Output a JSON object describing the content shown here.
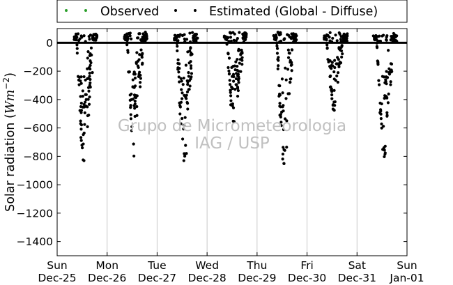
{
  "chart_data": {
    "type": "scatter",
    "ylabel": "Solar radiation (Wm^-2)",
    "ylabel_parts": {
      "prefix": "Solar radiation (",
      "unit": "Wm",
      "exponent": "−2",
      "suffix": ")"
    },
    "ylim": [
      -1500,
      100
    ],
    "yticks": [
      0,
      -200,
      -400,
      -600,
      -800,
      -1000,
      -1200,
      -1400
    ],
    "ytick_labels": [
      "0",
      "−200",
      "−400",
      "−600",
      "−800",
      "−1000",
      "−1200",
      "−1400"
    ],
    "xlim_days": [
      0,
      7
    ],
    "xticks": [
      {
        "day": "Sun",
        "date": "Dec-25"
      },
      {
        "day": "Mon",
        "date": "Dec-26"
      },
      {
        "day": "Tue",
        "date": "Dec-27"
      },
      {
        "day": "Wed",
        "date": "Dec-28"
      },
      {
        "day": "Thu",
        "date": "Dec-29"
      },
      {
        "day": "Fri",
        "date": "Dec-30"
      },
      {
        "day": "Sat",
        "date": "Dec-31"
      },
      {
        "day": "Sun",
        "date": "Jan-01"
      }
    ],
    "grid": "vertical lines at day boundaries",
    "legend_position": "top, outside plot",
    "watermark": [
      "Grupo de Micrometeorologia",
      "IAG / USP"
    ],
    "colors": {
      "observed": "#2ca02c",
      "estimated": "#000000",
      "grid": "#c8c8c8",
      "watermark": "#c0c0c0"
    },
    "series": [
      {
        "name": "Observed",
        "color": "#2ca02c",
        "points": []
      },
      {
        "name": "Estimated (Global - Diffuse)",
        "color": "#000000",
        "days": [
          {
            "day_index": 0,
            "min_value": -950,
            "morning_low_hours": 14.5,
            "afternoon_recover_hours": 18,
            "scatter": true
          },
          {
            "day_index": 1,
            "min_value": -810,
            "morning_low_hours": 14.5,
            "afternoon_recover_hours": 18,
            "scatter": true
          },
          {
            "day_index": 2,
            "min_value": -840,
            "morning_low_hours": 14,
            "afternoon_recover_hours": 18,
            "scatter": true
          },
          {
            "day_index": 3,
            "min_value": -630,
            "morning_low_hours": 15,
            "afternoon_recover_hours": 18,
            "scatter": true
          },
          {
            "day_index": 4,
            "min_value": -860,
            "morning_low_hours": 15,
            "afternoon_recover_hours": 18,
            "scatter": true
          },
          {
            "day_index": 5,
            "min_value": -480,
            "morning_low_hours": 14,
            "afternoon_recover_hours": 18,
            "scatter": true
          },
          {
            "day_index": 6,
            "min_value": -820,
            "morning_low_hours": 14,
            "afternoon_recover_hours": 18,
            "scatter": true
          }
        ]
      }
    ]
  },
  "legend": {
    "items": [
      {
        "label": "Observed",
        "color": "#2ca02c"
      },
      {
        "label": "Estimated (Global - Diffuse)",
        "color": "#000000"
      }
    ]
  },
  "watermark": {
    "line1": "Grupo de Micrometeorologia",
    "line2": "IAG / USP"
  }
}
